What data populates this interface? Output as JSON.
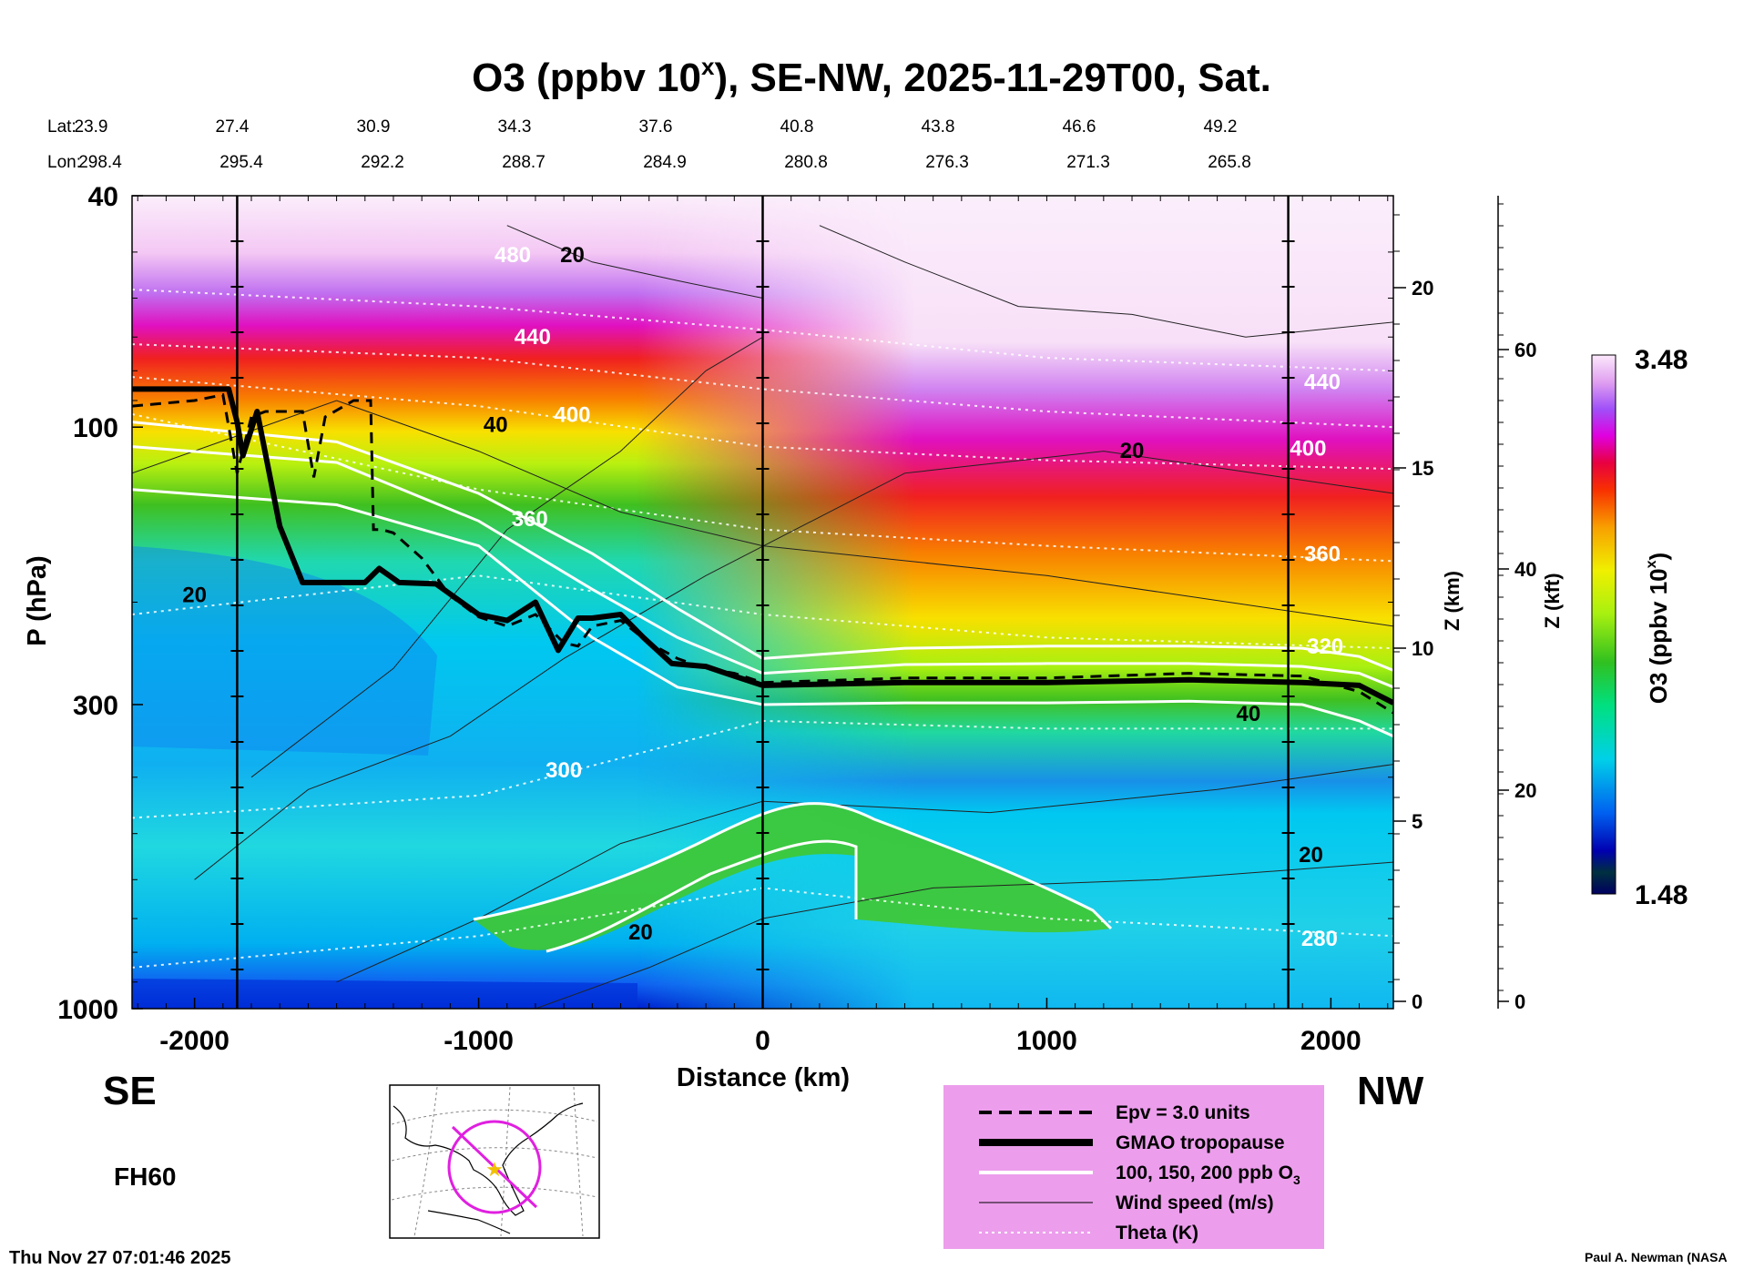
{
  "chart_data": {
    "type": "heatmap",
    "title": "O3 (ppbv 10",
    "title_superscript": "x",
    "title_rest": "), SE-NW, 2025-11-29T00, Sat.",
    "xlabel": "Distance (km)",
    "ylabel": "P (hPa)",
    "y2label": "Z (km)",
    "y3label": "Z (kft)",
    "colorbar_label": "O3 (ppbv 10",
    "colorbar_label_sup": "x",
    "colorbar_label_end": ")",
    "xlim": [
      -2220,
      2220
    ],
    "ylim": [
      1000,
      40
    ],
    "y_scale": "log",
    "grid": false,
    "x_ticks": [
      "-2000",
      "-1000",
      "0",
      "1000",
      "2000"
    ],
    "x_tick_values": [
      -2000,
      -1000,
      0,
      1000,
      2000
    ],
    "y_ticks": [
      "40",
      "100",
      "300",
      "1000"
    ],
    "y_tick_values": [
      40,
      100,
      300,
      1000
    ],
    "zkm_ticks": [
      "0",
      "5",
      "10",
      "15",
      "20"
    ],
    "zkft_ticks": [
      "0",
      "20",
      "40",
      "60"
    ],
    "colorbar": {
      "min_label": "1.48",
      "max_label": "3.48",
      "min": 1.48,
      "max": 3.48
    },
    "lat_label": "Lat:",
    "lon_label": "Lon:",
    "lat": [
      "23.9",
      "27.4",
      "30.9",
      "34.3",
      "37.6",
      "40.8",
      "43.8",
      "46.6",
      "49.2"
    ],
    "lon": [
      "298.4",
      "295.4",
      "292.2",
      "288.7",
      "284.9",
      "280.8",
      "276.3",
      "271.3",
      "265.8"
    ],
    "vertical_lines_km": [
      -1850,
      0,
      1850
    ],
    "side_labels": {
      "left": "SE",
      "right": "NW"
    },
    "forecast_hour": "FH60",
    "timestamp": "Thu Nov 27 07:01:46 2025",
    "credit": "Paul A. Newman (NASA",
    "theta_labels": [
      {
        "text": "480",
        "x": -880,
        "p": 52
      },
      {
        "text": "440",
        "x": -810,
        "p": 72
      },
      {
        "text": "400",
        "x": -670,
        "p": 98
      },
      {
        "text": "360",
        "x": -820,
        "p": 148
      },
      {
        "text": "300",
        "x": -700,
        "p": 400
      },
      {
        "text": "440",
        "x": 1970,
        "p": 86
      },
      {
        "text": "400",
        "x": 1920,
        "p": 112
      },
      {
        "text": "360",
        "x": 1970,
        "p": 170
      },
      {
        "text": "320",
        "x": 1980,
        "p": 245
      },
      {
        "text": "280",
        "x": 1960,
        "p": 780
      }
    ],
    "wind_labels": [
      {
        "text": "20",
        "x": -670,
        "p": 52
      },
      {
        "text": "40",
        "x": -940,
        "p": 102
      },
      {
        "text": "20",
        "x": 1300,
        "p": 113
      },
      {
        "text": "20",
        "x": -2000,
        "p": 200
      },
      {
        "text": "40",
        "x": 1710,
        "p": 320
      },
      {
        "text": "20",
        "x": 1930,
        "p": 560
      },
      {
        "text": "20",
        "x": -430,
        "p": 760
      }
    ],
    "legend": {
      "placement": "bottom-center",
      "background": "#ec9eec",
      "items": [
        {
          "label": "Epv = 3.0 units",
          "style": "dashed"
        },
        {
          "label": "GMAO tropopause",
          "style": "thick"
        },
        {
          "label": "100, 150, 200 ppb O",
          "sub": "3",
          "style": "white"
        },
        {
          "label": "Wind speed (m/s)",
          "style": "thin"
        },
        {
          "label": "Theta (K)",
          "style": "dotted-white"
        }
      ]
    },
    "series": [
      {
        "name": "GMAO tropopause",
        "x": [
          -2220,
          -1880,
          -1850,
          -1830,
          -1780,
          -1700,
          -1620,
          -1500,
          -1400,
          -1350,
          -1280,
          -1150,
          -1000,
          -900,
          -800,
          -720,
          -650,
          -600,
          -500,
          -420,
          -320,
          -200,
          -100,
          0,
          500,
          1000,
          1500,
          1900,
          2100,
          2220
        ],
        "p": [
          86,
          86,
          98,
          112,
          94,
          148,
          185,
          185,
          185,
          175,
          185,
          186,
          210,
          215,
          200,
          242,
          213,
          213,
          210,
          230,
          255,
          258,
          268,
          278,
          275,
          275,
          272,
          275,
          278,
          298
        ]
      },
      {
        "name": "Epv = 3.0 units",
        "x": [
          -2220,
          -2000,
          -1900,
          -1850,
          -1800,
          -1750,
          -1620,
          -1580,
          -1540,
          -1440,
          -1380,
          -1370,
          -1340,
          -1300,
          -1200,
          -1100,
          -1000,
          -900,
          -800,
          -700,
          -650,
          -600,
          -500,
          -400,
          -300,
          -200,
          -100,
          0,
          500,
          1000,
          1500,
          1900,
          2100,
          2220
        ],
        "p": [
          92,
          90,
          88,
          120,
          96,
          94,
          94,
          122,
          96,
          90,
          90,
          150,
          150,
          152,
          168,
          195,
          212,
          220,
          210,
          235,
          238,
          220,
          215,
          235,
          250,
          260,
          265,
          275,
          270,
          270,
          265,
          268,
          285,
          310
        ]
      },
      {
        "name": "100 ppb O3",
        "x": [
          -2220,
          -1500,
          -1000,
          -600,
          -300,
          0,
          500,
          1000,
          1500,
          1900,
          2100,
          2220
        ],
        "p": [
          108,
          115,
          145,
          190,
          230,
          265,
          256,
          255,
          255,
          258,
          265,
          280
        ]
      },
      {
        "name": "150 ppb O3",
        "x": [
          -2220,
          -1500,
          -1000,
          -600,
          -300,
          0,
          500,
          1000,
          1500,
          1900,
          2100,
          2220
        ],
        "p": [
          98,
          106,
          130,
          165,
          205,
          250,
          240,
          238,
          238,
          240,
          248,
          262
        ]
      },
      {
        "name": "200 ppb O3",
        "x": [
          -2220,
          -1500,
          -1000,
          -600,
          -300,
          0,
          500,
          1000,
          1500,
          1900,
          2100,
          2220
        ],
        "p": [
          128,
          136,
          160,
          230,
          280,
          300,
          298,
          298,
          296,
          300,
          320,
          340
        ]
      }
    ]
  }
}
